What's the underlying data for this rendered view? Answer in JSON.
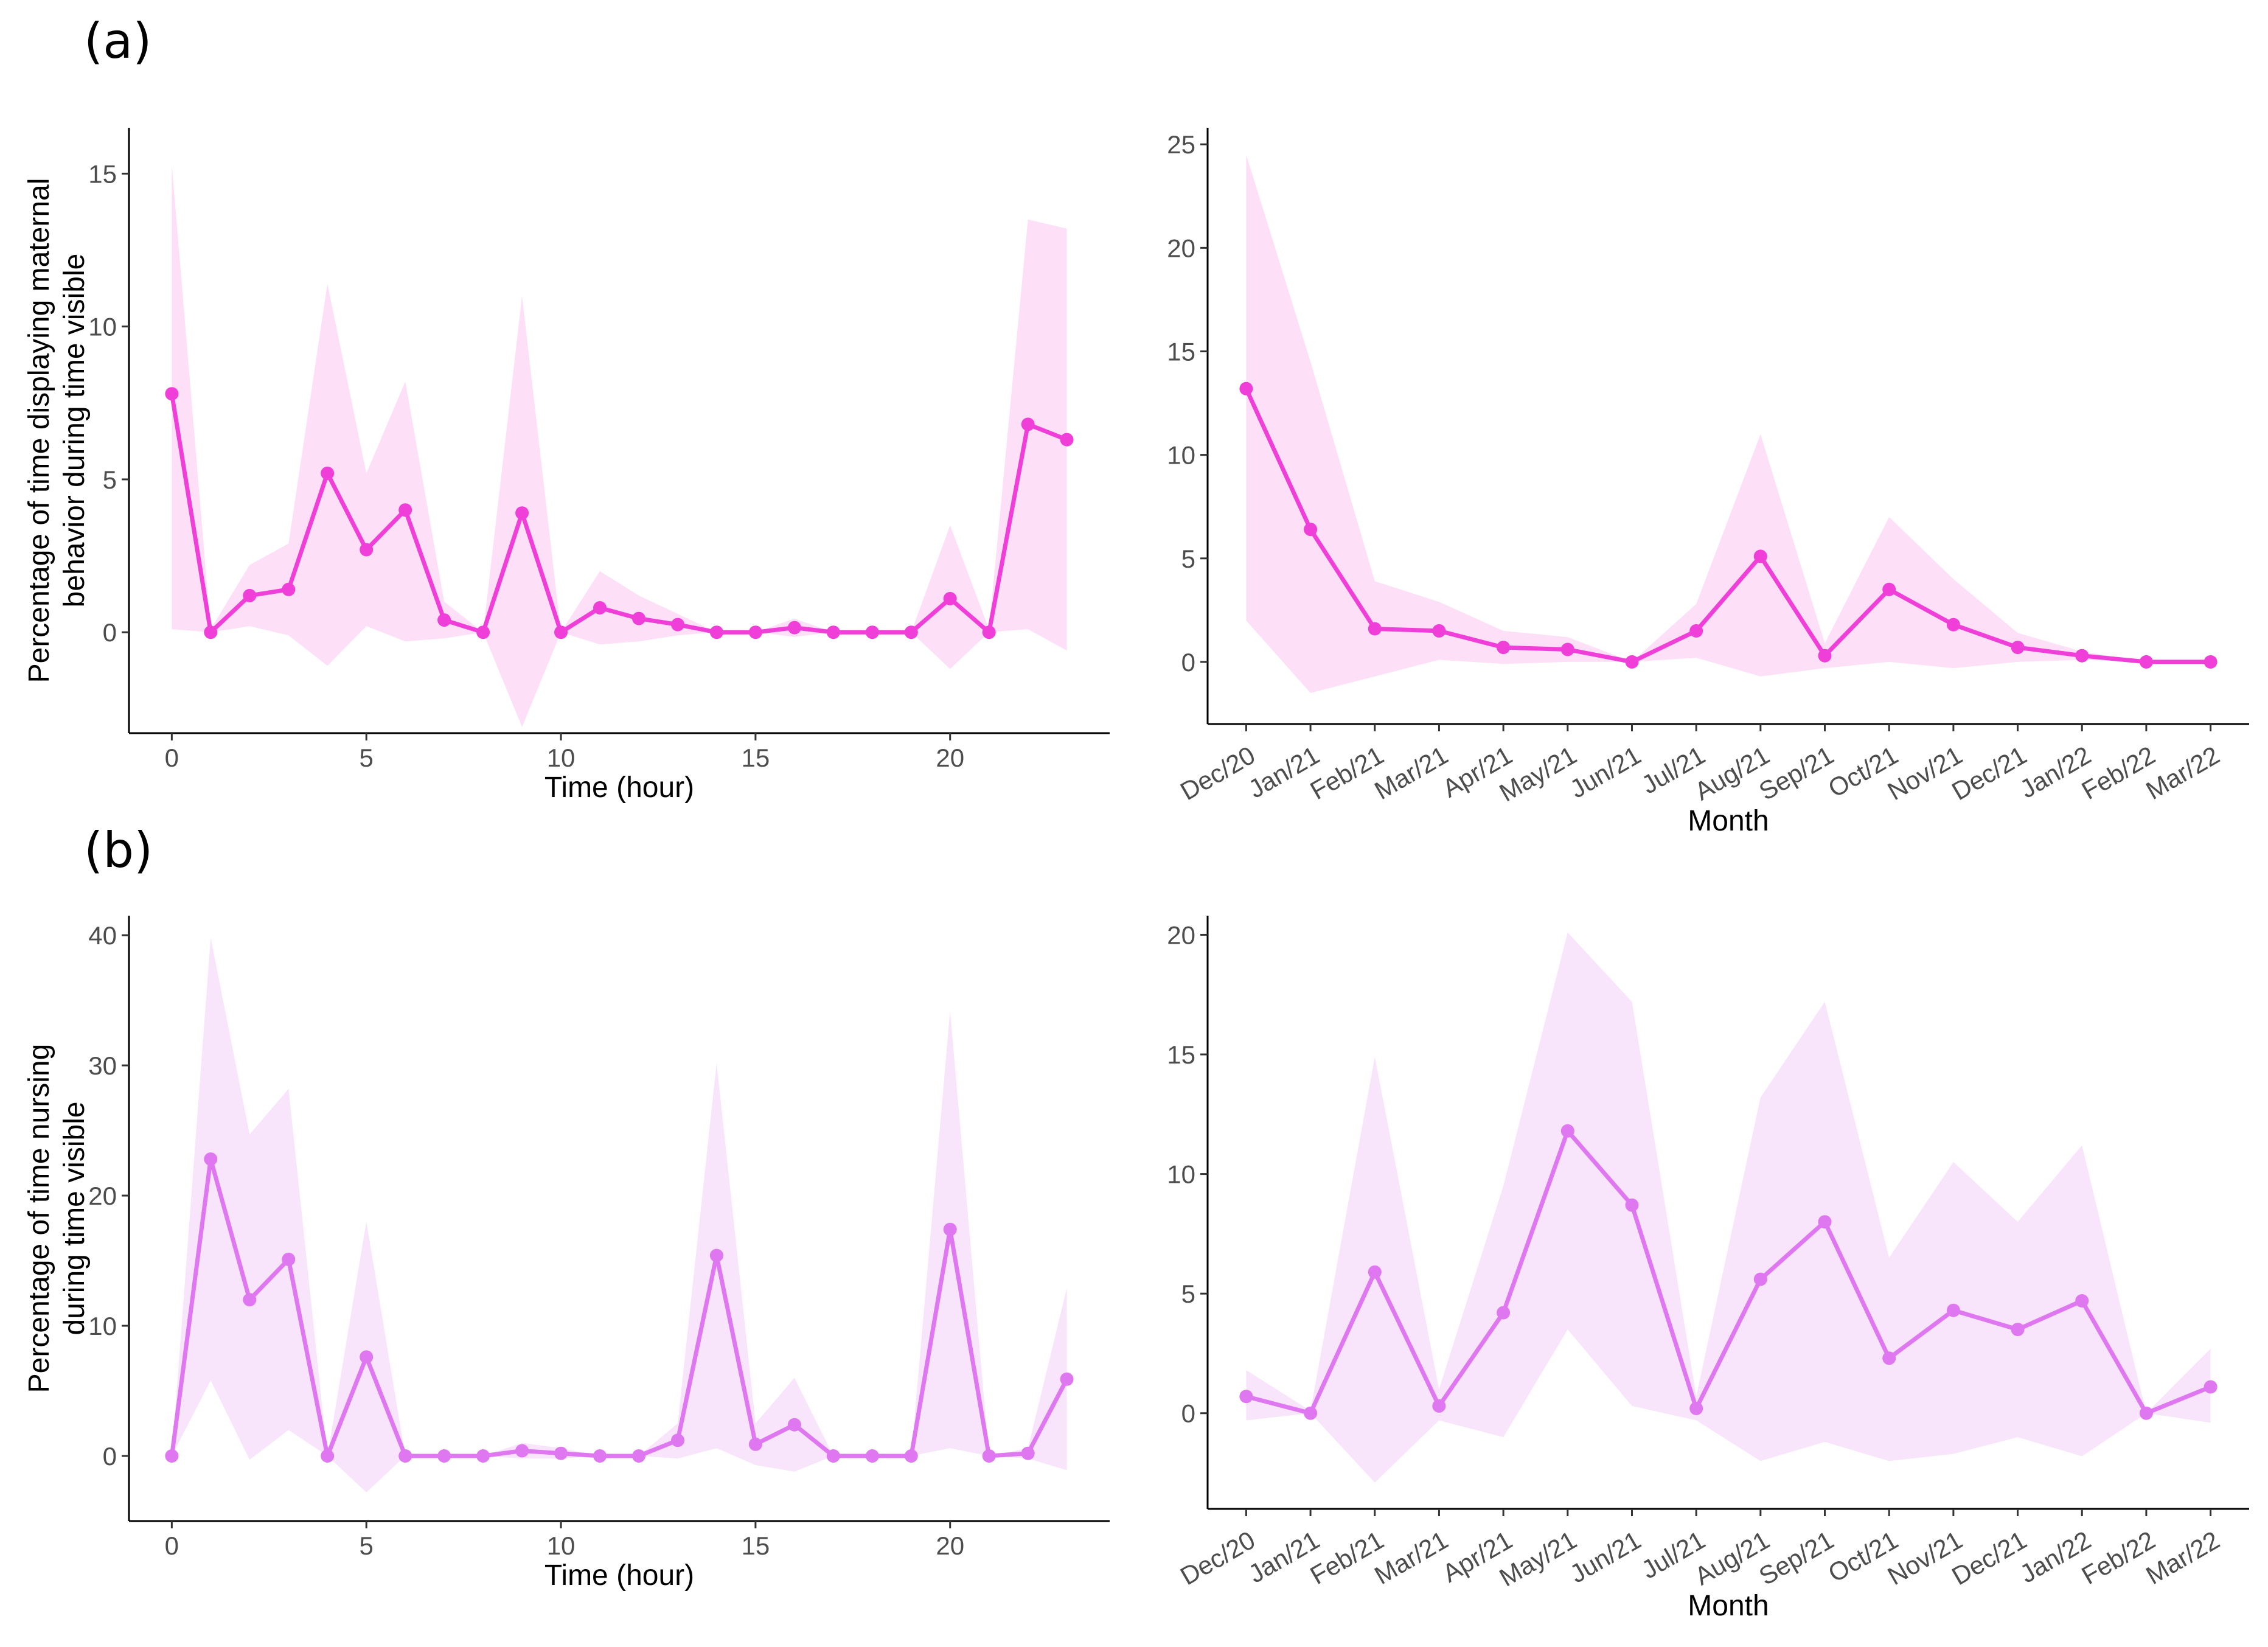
{
  "panel_labels": {
    "a": "(a)",
    "b": "(b)"
  },
  "chart_data": [
    {
      "id": "a-hour",
      "type": "line",
      "panel": "(a)",
      "xlabel": "Time (hour)",
      "ylabel": [
        "Percentage of time displaying maternal",
        "behavior during time visible"
      ],
      "xlim": [
        -1.1,
        24.1
      ],
      "ylim": [
        -3.3,
        16.5
      ],
      "xticks": [
        0,
        5,
        10,
        15,
        20
      ],
      "xtick_labels": [
        "0",
        "5",
        "10",
        "15",
        "20"
      ],
      "yticks": [
        0,
        5,
        10,
        15
      ],
      "ytick_labels": [
        "0",
        "5",
        "10",
        "15"
      ],
      "color": "#f03fd8",
      "band_color": "#fde0f7",
      "x": [
        0,
        1,
        2,
        3,
        4,
        5,
        6,
        7,
        8,
        9,
        10,
        11,
        12,
        13,
        14,
        15,
        16,
        17,
        18,
        19,
        20,
        21,
        22,
        23
      ],
      "values": [
        7.8,
        0,
        1.2,
        1.4,
        5.2,
        2.7,
        4.0,
        0.4,
        0,
        3.9,
        0,
        0.8,
        0.45,
        0.25,
        0,
        0,
        0.15,
        0,
        0,
        0,
        1.1,
        0,
        6.8,
        6.3
      ],
      "upper": [
        15.3,
        0.1,
        2.2,
        2.9,
        11.4,
        5.2,
        8.2,
        1.0,
        0,
        11.0,
        0,
        2.0,
        1.2,
        0.6,
        0,
        0,
        0.45,
        0,
        0,
        0,
        3.5,
        0.1,
        13.5,
        13.2
      ],
      "lower": [
        0.1,
        0,
        0.2,
        -0.1,
        -1.1,
        0.2,
        -0.3,
        -0.2,
        0,
        -3.1,
        0,
        -0.4,
        -0.3,
        -0.1,
        0,
        0,
        -0.15,
        0,
        0,
        0,
        -1.2,
        0,
        0.1,
        -0.6
      ]
    },
    {
      "id": "a-month",
      "type": "line",
      "panel": "(a)",
      "xlabel": "Month",
      "ylabel": [],
      "xlim": [
        -0.6,
        15.6
      ],
      "ylim": [
        -3.0,
        25.8
      ],
      "categories": [
        "Dec/20",
        "Jan/21",
        "Feb/21",
        "Mar/21",
        "Apr/21",
        "May/21",
        "Jun/21",
        "Jul/21",
        "Aug/21",
        "Sep/21",
        "Oct/21",
        "Nov/21",
        "Dec/21",
        "Jan/22",
        "Feb/22",
        "Mar/22"
      ],
      "yticks": [
        0,
        5,
        10,
        15,
        20,
        25
      ],
      "ytick_labels": [
        "0",
        "5",
        "10",
        "15",
        "20",
        "25"
      ],
      "color": "#f03fd8",
      "band_color": "#fde0f7",
      "values": [
        13.2,
        6.4,
        1.6,
        1.5,
        0.7,
        0.6,
        0,
        1.5,
        5.1,
        0.3,
        3.5,
        1.8,
        0.7,
        0.3,
        0,
        0
      ],
      "upper": [
        24.5,
        14.5,
        3.9,
        2.9,
        1.5,
        1.2,
        0,
        2.8,
        11.0,
        0.9,
        7.0,
        4.0,
        1.4,
        0.5,
        0,
        0
      ],
      "lower": [
        2.0,
        -1.5,
        -0.7,
        0.1,
        -0.1,
        0,
        0,
        0.2,
        -0.7,
        -0.3,
        0,
        -0.3,
        0,
        0.1,
        0,
        0
      ]
    },
    {
      "id": "b-hour",
      "type": "line",
      "panel": "(b)",
      "xlabel": "Time (hour)",
      "ylabel": [
        "Percentage of time nursing",
        "during time visible"
      ],
      "xlim": [
        -1.1,
        24.1
      ],
      "ylim": [
        -5.0,
        41.5
      ],
      "xticks": [
        0,
        5,
        10,
        15,
        20
      ],
      "xtick_labels": [
        "0",
        "5",
        "10",
        "15",
        "20"
      ],
      "yticks": [
        0,
        10,
        20,
        30,
        40
      ],
      "ytick_labels": [
        "0",
        "10",
        "20",
        "30",
        "40"
      ],
      "color": "#de77f0",
      "band_color": "#f8e4fb",
      "x": [
        0,
        1,
        2,
        3,
        4,
        5,
        6,
        7,
        8,
        9,
        10,
        11,
        12,
        13,
        14,
        15,
        16,
        17,
        18,
        19,
        20,
        21,
        22,
        23
      ],
      "values": [
        0,
        22.8,
        12.0,
        15.1,
        0,
        7.6,
        0,
        0,
        0,
        0.4,
        0.2,
        0,
        0,
        1.2,
        15.4,
        0.9,
        2.4,
        0,
        0,
        0,
        17.4,
        0,
        0.2,
        5.9
      ],
      "upper": [
        0,
        39.8,
        24.7,
        28.2,
        0,
        18.0,
        0,
        0,
        0,
        1.0,
        0.6,
        0,
        0,
        2.5,
        30.2,
        2.5,
        6.0,
        0,
        0,
        0,
        34.2,
        0,
        0.6,
        12.9
      ],
      "lower": [
        0,
        5.8,
        -0.3,
        2.0,
        0,
        -2.8,
        0,
        0,
        0,
        -0.2,
        -0.2,
        0,
        0,
        -0.2,
        0.6,
        -0.7,
        -1.2,
        0,
        0,
        0,
        0.6,
        0,
        -0.2,
        -1.1
      ]
    },
    {
      "id": "b-month",
      "type": "line",
      "panel": "(b)",
      "xlabel": "Month",
      "ylabel": [],
      "xlim": [
        -0.6,
        15.6
      ],
      "ylim": [
        -4.0,
        20.8
      ],
      "categories": [
        "Dec/20",
        "Jan/21",
        "Feb/21",
        "Mar/21",
        "Apr/21",
        "May/21",
        "Jun/21",
        "Jul/21",
        "Aug/21",
        "Sep/21",
        "Oct/21",
        "Nov/21",
        "Dec/21",
        "Jan/22",
        "Feb/22",
        "Mar/22"
      ],
      "yticks": [
        0,
        5,
        10,
        15,
        20
      ],
      "ytick_labels": [
        "0",
        "5",
        "10",
        "15",
        "20"
      ],
      "color": "#de77f0",
      "band_color": "#f8e4fb",
      "values": [
        0.7,
        0,
        5.9,
        0.3,
        4.2,
        11.8,
        8.7,
        0.2,
        5.6,
        8.0,
        2.3,
        4.3,
        3.5,
        4.7,
        0,
        1.1
      ],
      "upper": [
        1.8,
        0.1,
        14.9,
        1.0,
        9.5,
        20.1,
        17.2,
        0.7,
        13.2,
        17.2,
        6.5,
        10.5,
        8.0,
        11.2,
        0,
        2.7
      ],
      "lower": [
        -0.3,
        0,
        -2.9,
        -0.3,
        -1.0,
        3.5,
        0.3,
        -0.3,
        -2.0,
        -1.2,
        -2.0,
        -1.7,
        -1.0,
        -1.8,
        0,
        -0.4
      ]
    }
  ]
}
